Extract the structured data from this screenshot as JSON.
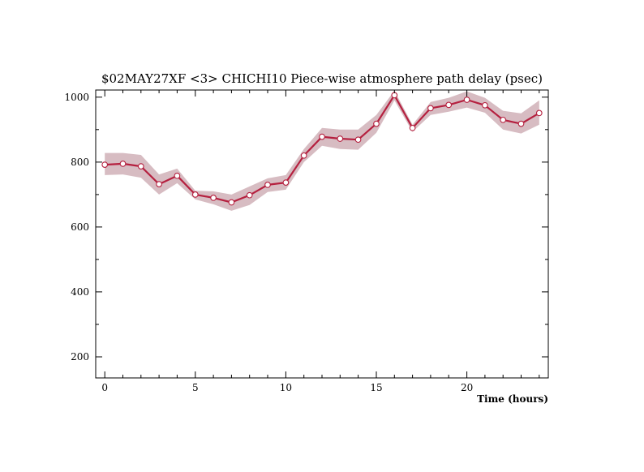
{
  "chart_data": {
    "type": "line",
    "title": "$02MAY27XF <3>  CHICHI10  Piece-wise atmosphere path delay (psec)",
    "xlabel": "Time (hours)",
    "ylabel": "",
    "xlim": [
      -0.5,
      24.5
    ],
    "ylim": [
      135,
      1022
    ],
    "x_ticks": [
      "0",
      "5",
      "10",
      "15",
      "20"
    ],
    "y_ticks": [
      "200",
      "400",
      "600",
      "800",
      "1000"
    ],
    "grid": false,
    "legend": "none",
    "colors": {
      "line": "#b5203f",
      "band": "#d7bcc2",
      "marker_fill": "#ffffff"
    },
    "series": [
      {
        "x": [
          0,
          1,
          2,
          3,
          4,
          5,
          6,
          7,
          8,
          9,
          10,
          11,
          12,
          13,
          14,
          15,
          16,
          17,
          18,
          19,
          20,
          21,
          22,
          23,
          24
        ],
        "y": [
          792,
          795,
          787,
          732,
          758,
          700,
          690,
          676,
          698,
          730,
          737,
          820,
          878,
          872,
          869,
          918,
          1006,
          905,
          966,
          976,
          992,
          975,
          930,
          918,
          951
        ],
        "lower": [
          760,
          762,
          752,
          700,
          735,
          685,
          670,
          650,
          668,
          708,
          715,
          800,
          850,
          840,
          838,
          890,
          990,
          893,
          945,
          955,
          968,
          952,
          900,
          888,
          915
        ],
        "upper": [
          828,
          828,
          822,
          762,
          780,
          712,
          710,
          700,
          725,
          750,
          760,
          840,
          905,
          900,
          900,
          945,
          1020,
          915,
          985,
          998,
          1018,
          998,
          958,
          950,
          990
        ]
      }
    ]
  }
}
